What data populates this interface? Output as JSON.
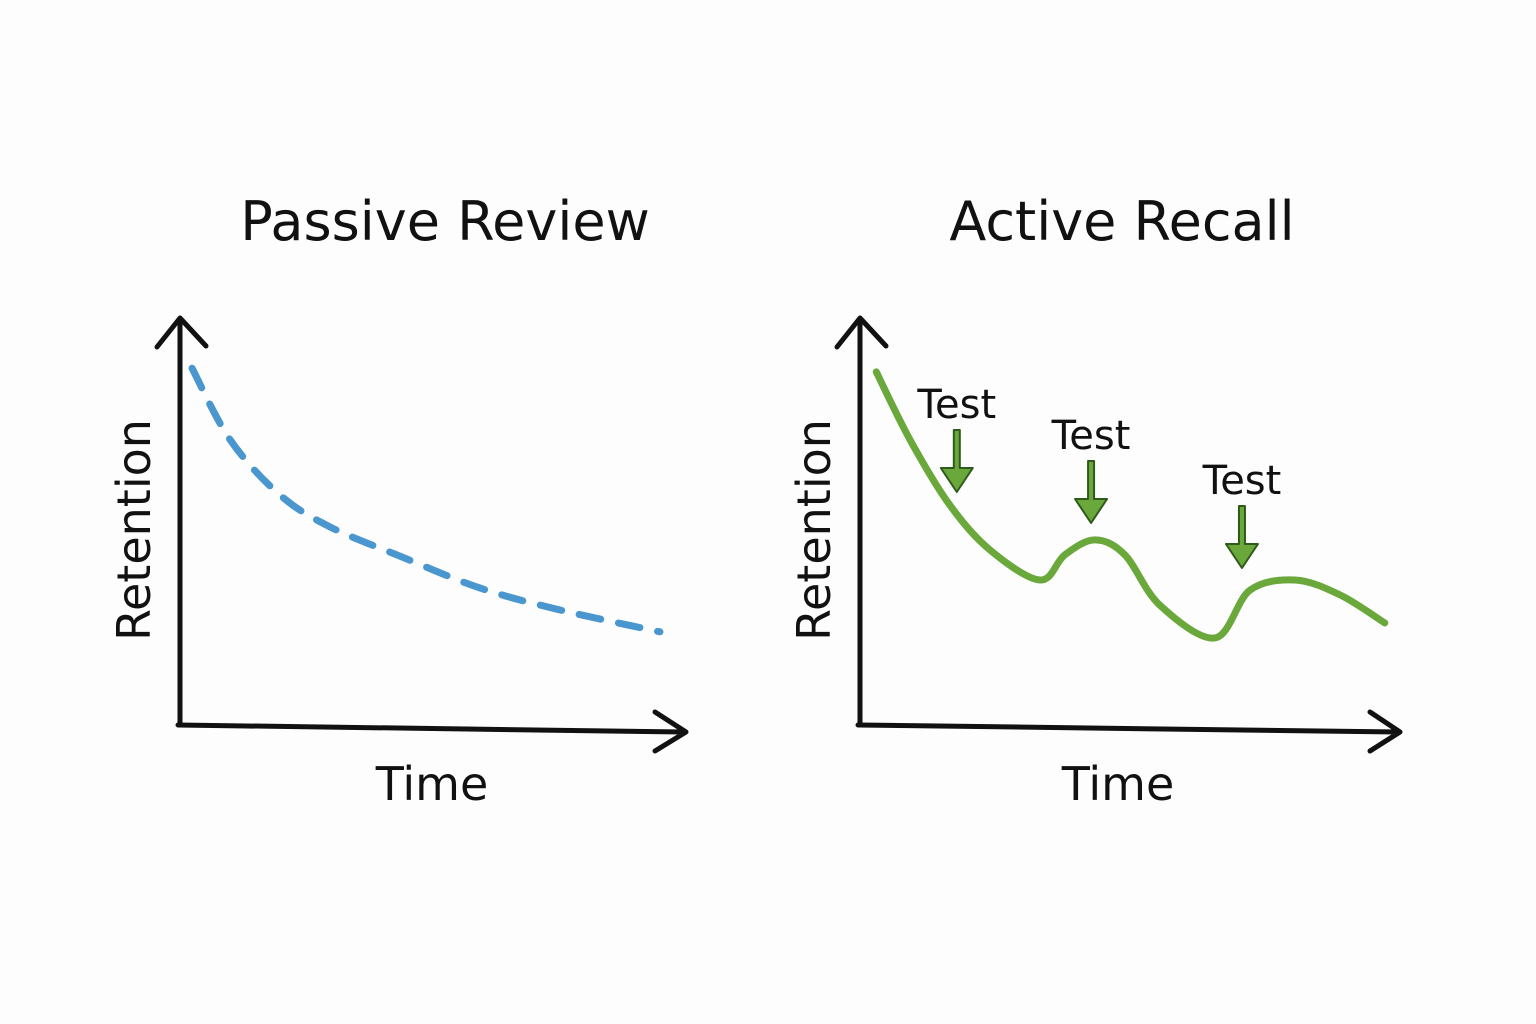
{
  "chart_data": [
    {
      "type": "line",
      "title": "Passive Review",
      "xlabel": "Time",
      "ylabel": "Retention",
      "grid": false,
      "line_style": "dashed",
      "color": "#4a97cf",
      "x": [
        0.28,
        1.04,
        2.03,
        3.03,
        4.42,
        6.02,
        7.61,
        9.6
      ],
      "y": [
        88.1,
        70.4,
        56.8,
        48.9,
        41.7,
        33.8,
        28.4,
        23.0
      ],
      "xlim": [
        0,
        10
      ],
      "ylim": [
        0,
        100
      ]
    },
    {
      "type": "line",
      "title": "Active Recall",
      "xlabel": "Time",
      "ylabel": "Retention",
      "grid": false,
      "line_style": "solid",
      "color": "#6aa83c",
      "x": [
        0.34,
        0.97,
        1.71,
        2.46,
        3.39,
        3.85,
        4.41,
        4.97,
        5.62,
        6.65,
        7.3,
        8.14,
        8.98,
        9.81
      ],
      "y": [
        87.2,
        70.4,
        54.3,
        43.2,
        35.8,
        42.0,
        45.7,
        42.0,
        29.6,
        21.5,
        33.3,
        35.8,
        32.1,
        25.2
      ],
      "xlim": [
        0,
        10
      ],
      "ylim": [
        0,
        100
      ],
      "annotations": [
        {
          "text": "Test",
          "x": 1.84,
          "icon": "arrow-down-icon"
        },
        {
          "text": "Test",
          "x": 4.34,
          "icon": "arrow-down-icon"
        },
        {
          "text": "Test",
          "x": 7.15,
          "icon": "arrow-down-icon"
        }
      ]
    }
  ]
}
